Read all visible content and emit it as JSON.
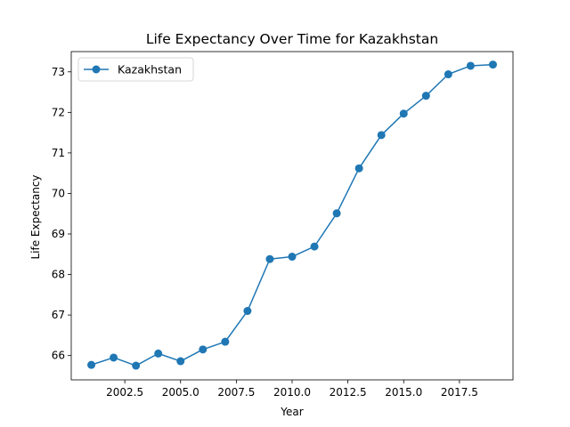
{
  "chart_data": {
    "type": "line",
    "title": "Life Expectancy Over Time for Kazakhstan",
    "xlabel": "Year",
    "ylabel": "Life Expectancy",
    "xlim": [
      2000.1,
      2019.9
    ],
    "ylim": [
      65.4,
      73.5
    ],
    "xticks": [
      2002.5,
      2005.0,
      2007.5,
      2010.0,
      2012.5,
      2015.0,
      2017.5
    ],
    "xtick_labels": [
      "2002.5",
      "2005.0",
      "2007.5",
      "2010.0",
      "2012.5",
      "2015.0",
      "2017.5"
    ],
    "yticks": [
      66,
      67,
      68,
      69,
      70,
      71,
      72,
      73
    ],
    "ytick_labels": [
      "66",
      "67",
      "68",
      "69",
      "70",
      "71",
      "72",
      "73"
    ],
    "grid": false,
    "legend_position": "top-left",
    "series": [
      {
        "name": "Kazakhstan",
        "color": "#1f77b4",
        "marker": "circle",
        "x": [
          2001,
          2002,
          2003,
          2004,
          2005,
          2006,
          2007,
          2008,
          2009,
          2010,
          2011,
          2012,
          2013,
          2014,
          2015,
          2016,
          2017,
          2018,
          2019
        ],
        "y": [
          65.77,
          65.95,
          65.75,
          66.05,
          65.86,
          66.15,
          66.34,
          67.1,
          68.38,
          68.44,
          68.69,
          69.51,
          70.62,
          71.44,
          71.97,
          72.41,
          72.94,
          73.15,
          73.18
        ]
      }
    ]
  }
}
